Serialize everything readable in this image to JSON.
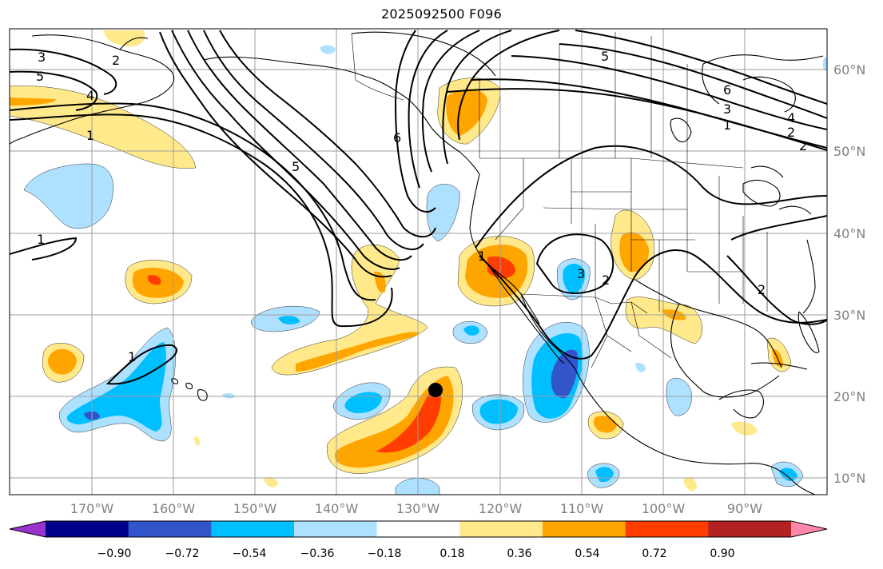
{
  "title": "2025092500 F096",
  "lon_labels": [
    "170°W",
    "160°W",
    "150°W",
    "140°W",
    "130°W",
    "120°W",
    "110°W",
    "100°W",
    "90°W"
  ],
  "lat_labels": [
    "10°N",
    "20°N",
    "30°N",
    "40°N",
    "50°N",
    "60°N"
  ],
  "colorbar": {
    "tick_labels": [
      "−0.90",
      "−0.72",
      "−0.54",
      "−0.36",
      "−0.18",
      "0.18",
      "0.36",
      "0.54",
      "0.72",
      "0.90"
    ],
    "colors": [
      "#9933cc",
      "#00008b",
      "#3355cc",
      "#00bfff",
      "#aee0ff",
      "#ffffff",
      "#ffe98a",
      "#ffa500",
      "#ff3d00",
      "#b22222",
      "#ff88aa"
    ]
  },
  "contour_labels": [
    "3",
    "2",
    "5",
    "4",
    "1",
    "6",
    "5",
    "5",
    "1",
    "3",
    "2",
    "1",
    "4",
    "2",
    "6",
    "1",
    "3",
    "2",
    "2",
    "1"
  ],
  "marker": "storm-center-dot"
}
